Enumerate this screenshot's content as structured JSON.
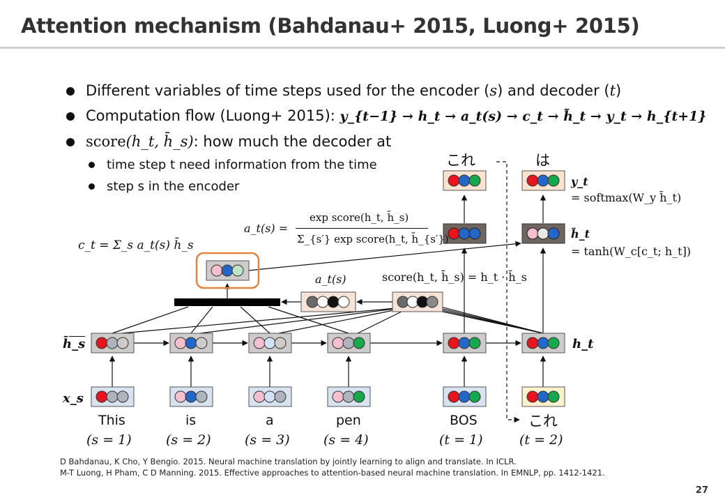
{
  "title": "Attention mechanism (Bahdanau+ 2015, Luong+ 2015)",
  "bullets": {
    "b1_text": "Different variables of time steps used for the encoder (",
    "b1_s": "s",
    "b1_mid": ") and decoder (",
    "b1_t": "t",
    "b1_end": ")",
    "b2_text": "Computation flow (Luong+ 2015): ",
    "b2_flow": "y_{t−1} → h_t → a_t(s) → c_t → h̃_t → y_t → h_{t+1}",
    "b3_fn": "score",
    "b3_args": "(h_t, h̄_s)",
    "b3_text": ": how much the decoder at",
    "sub1": "time step t need information from the time",
    "sub2": "step s in the encoder"
  },
  "diagram": {
    "source_words": [
      "This",
      "is",
      "a",
      "pen"
    ],
    "source_steps": [
      "(s = 1)",
      "(s = 2)",
      "(s = 3)",
      "(s = 4)"
    ],
    "target_inputs": [
      "BOS",
      "これ"
    ],
    "target_steps": [
      "(t = 1)",
      "(t = 2)"
    ],
    "outputs": [
      "これ",
      "は"
    ],
    "row_labels": {
      "hs_bar": "h̄_s",
      "xs": "x_s",
      "ht": "h_t"
    },
    "ct_formula": "c_t = Σ_s a_t(s) h̄_s",
    "at_formula_lhs": "a_t(s) =",
    "at_formula_num": "exp score(h_t, h̄_s)",
    "at_formula_den": "Σ_{s′} exp score(h_t, h̄_{s′})",
    "at_label": "a_t(s)",
    "score_formula": "score(h_t, h̄_s) = h_t · h̄_s",
    "yt_label": "y_t",
    "yt_formula": "= softmax(W_y h̃_t)",
    "ht_tilde_label": "h̃_t",
    "ht_tilde_formula": "= tanh(W_c[c_t; h_t])"
  },
  "references": [
    "D Bahdanau, K Cho, Y Bengio. 2015. Neural machine translation by jointly learning to align and translate. In ICLR.",
    "M-T Luong, H Pham, C D Manning. 2015. Effective approaches to attention-based neural machine translation. In EMNLP, pp. 1412-1421."
  ],
  "page_number": "27",
  "colors": {
    "red": "#e8141e",
    "blue": "#2467c8",
    "green": "#17a84d",
    "gray": "#aeb3bd",
    "pink": "#f5bfcf",
    "lightblue": "#d2e2f5",
    "attention_orange": "#e0853c",
    "box_gray": "#cfcbcb",
    "box_dark": "#6f6560",
    "box_light_blue": "#d8e2f0",
    "box_cream": "#fbf2cd",
    "box_peach": "#f7e3d7"
  }
}
